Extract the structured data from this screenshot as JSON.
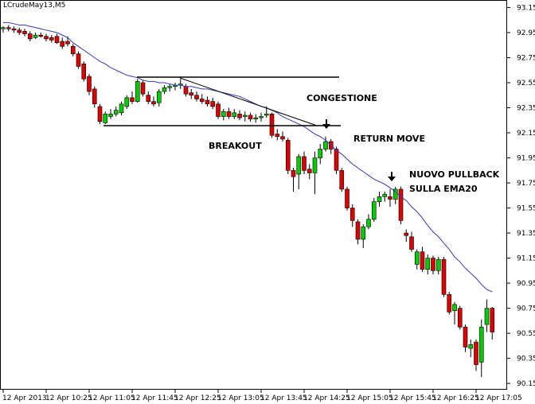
{
  "chart_data": {
    "type": "candlestick",
    "title": "LCrudeMay13,M5",
    "categories": [
      "12 Apr 2013",
      null,
      null,
      null,
      null,
      null,
      null,
      null,
      "12 Apr 10:25",
      null,
      null,
      null,
      null,
      null,
      null,
      null,
      "12 Apr 11:05",
      null,
      null,
      null,
      null,
      null,
      null,
      null,
      "12 Apr 11:45",
      null,
      null,
      null,
      null,
      null,
      null,
      null,
      "12 Apr 12:25",
      null,
      null,
      null,
      null,
      null,
      null,
      null,
      "12 Apr 13:05",
      null,
      null,
      null,
      null,
      null,
      null,
      null,
      "12 Apr 13:45",
      null,
      null,
      null,
      null,
      null,
      null,
      null,
      "12 Apr 14:25",
      null,
      null,
      null,
      null,
      null,
      null,
      null,
      "12 Apr 15:05",
      null,
      null,
      null,
      null,
      null,
      null,
      null,
      "12 Apr 15:45",
      null,
      null,
      null,
      null,
      null,
      null,
      null,
      "12 Apr 16:25",
      null,
      null,
      null,
      null,
      null,
      null,
      null,
      "12 Apr 17:05",
      null,
      null,
      null
    ],
    "open": [
      92.98,
      92.99,
      92.98,
      92.97,
      92.96,
      92.94,
      92.91,
      92.93,
      92.92,
      92.91,
      92.92,
      92.88,
      92.88,
      92.84,
      92.78,
      92.7,
      92.6,
      92.5,
      92.36,
      92.23,
      92.28,
      92.3,
      92.31,
      92.36,
      92.43,
      92.4,
      92.55,
      92.45,
      92.4,
      92.39,
      92.48,
      92.51,
      92.52,
      92.53,
      92.52,
      92.47,
      92.45,
      92.42,
      92.41,
      92.4,
      92.38,
      92.28,
      92.32,
      92.28,
      92.3,
      92.28,
      92.29,
      92.26,
      92.27,
      92.29,
      92.3,
      92.14,
      92.12,
      92.09,
      91.85,
      91.82,
      91.96,
      91.86,
      91.83,
      91.95,
      92.02,
      92.08,
      92.02,
      91.85,
      91.7,
      91.55,
      91.44,
      91.3,
      91.4,
      91.46,
      91.6,
      91.64,
      91.64,
      91.62,
      91.7,
      91.35,
      91.32,
      91.1,
      91.2,
      91.06,
      91.15,
      91.05,
      91.14,
      90.86,
      90.73,
      90.75,
      90.6,
      90.43,
      90.48,
      90.32,
      90.62,
      90.75
    ],
    "high": [
      93.0,
      93.01,
      93.0,
      92.99,
      92.98,
      92.96,
      92.95,
      92.95,
      92.94,
      92.93,
      92.94,
      92.91,
      92.92,
      92.86,
      92.8,
      92.72,
      92.62,
      92.52,
      92.38,
      92.32,
      92.34,
      92.36,
      92.4,
      92.45,
      92.48,
      92.58,
      92.57,
      92.48,
      92.44,
      92.5,
      92.53,
      92.54,
      92.55,
      92.58,
      92.54,
      92.5,
      92.48,
      92.46,
      92.44,
      92.43,
      92.4,
      92.34,
      92.35,
      92.34,
      92.33,
      92.32,
      92.31,
      92.3,
      92.31,
      92.36,
      92.31,
      92.18,
      92.16,
      92.11,
      91.87,
      91.98,
      92.0,
      91.9,
      92.0,
      92.06,
      92.12,
      92.1,
      92.04,
      91.87,
      91.72,
      91.58,
      91.46,
      91.42,
      91.5,
      91.63,
      91.68,
      91.68,
      91.7,
      91.72,
      91.72,
      91.38,
      91.36,
      91.22,
      91.24,
      91.18,
      91.17,
      91.16,
      91.16,
      90.88,
      90.8,
      90.77,
      90.62,
      90.5,
      90.5,
      90.66,
      90.82,
      90.76
    ],
    "low": [
      92.95,
      92.96,
      92.95,
      92.93,
      92.92,
      92.88,
      92.9,
      92.91,
      92.88,
      92.87,
      92.86,
      92.82,
      92.84,
      92.76,
      92.66,
      92.56,
      92.45,
      92.35,
      92.22,
      92.22,
      92.26,
      92.28,
      92.29,
      92.34,
      92.38,
      92.39,
      92.44,
      92.38,
      92.36,
      92.36,
      92.46,
      92.48,
      92.49,
      92.5,
      92.44,
      92.42,
      92.4,
      92.38,
      92.36,
      92.34,
      92.26,
      92.25,
      92.26,
      92.26,
      92.25,
      92.24,
      92.24,
      92.23,
      92.24,
      92.27,
      92.11,
      92.09,
      92.08,
      91.82,
      91.68,
      91.7,
      91.82,
      91.78,
      91.66,
      91.9,
      92.0,
      91.98,
      91.82,
      91.68,
      91.53,
      91.4,
      91.26,
      91.23,
      91.38,
      91.44,
      91.56,
      91.6,
      91.56,
      91.58,
      91.42,
      91.28,
      91.2,
      91.06,
      91.04,
      91.02,
      91.02,
      91.02,
      90.84,
      90.7,
      90.62,
      90.58,
      90.4,
      90.36,
      90.25,
      90.2,
      90.56,
      90.5
    ],
    "close": [
      92.99,
      92.98,
      92.97,
      92.95,
      92.94,
      92.9,
      92.93,
      92.92,
      92.9,
      92.89,
      92.87,
      92.84,
      92.86,
      92.78,
      92.68,
      92.58,
      92.48,
      92.38,
      92.24,
      92.3,
      92.3,
      92.33,
      92.38,
      92.43,
      92.4,
      92.56,
      92.46,
      92.4,
      92.38,
      92.48,
      92.51,
      92.52,
      92.53,
      92.54,
      92.46,
      92.45,
      92.42,
      92.4,
      92.38,
      92.36,
      92.28,
      92.32,
      92.28,
      92.31,
      92.27,
      92.29,
      92.26,
      92.27,
      92.28,
      92.3,
      92.13,
      92.12,
      92.1,
      91.85,
      91.8,
      91.96,
      91.85,
      91.83,
      91.95,
      92.02,
      92.08,
      92.02,
      91.85,
      91.7,
      91.55,
      91.45,
      91.3,
      91.4,
      91.46,
      91.6,
      91.64,
      91.66,
      91.62,
      91.7,
      91.45,
      91.33,
      91.22,
      91.2,
      91.06,
      91.15,
      91.05,
      91.14,
      90.86,
      90.72,
      90.78,
      90.6,
      90.44,
      90.46,
      90.3,
      90.6,
      90.75,
      90.56
    ],
    "ema": [
      93.03,
      93.03,
      93.02,
      93.01,
      93.01,
      93.0,
      92.99,
      92.98,
      92.97,
      92.96,
      92.95,
      92.93,
      92.91,
      92.87,
      92.84,
      92.81,
      92.78,
      92.75,
      92.72,
      92.7,
      92.67,
      92.65,
      92.63,
      92.61,
      92.6,
      92.59,
      92.57,
      92.56,
      92.56,
      92.55,
      92.55,
      92.54,
      92.53,
      92.53,
      92.52,
      92.52,
      92.51,
      92.5,
      92.5,
      92.49,
      92.48,
      92.47,
      92.46,
      92.45,
      92.44,
      92.42,
      92.4,
      92.38,
      92.36,
      92.35,
      92.33,
      92.31,
      92.28,
      92.26,
      92.24,
      92.22,
      92.2,
      92.17,
      92.14,
      92.12,
      92.09,
      92.05,
      92.01,
      91.98,
      91.94,
      91.9,
      91.87,
      91.84,
      91.81,
      91.78,
      91.76,
      91.74,
      91.71,
      91.68,
      91.64,
      91.61,
      91.56,
      91.52,
      91.47,
      91.41,
      91.36,
      91.32,
      91.27,
      91.22,
      91.16,
      91.12,
      91.07,
      91.03,
      90.99,
      90.94,
      90.9,
      90.88
    ],
    "up_color": "#00cc00",
    "down_color": "#dd0000",
    "ema_color": "#3838b0",
    "ylim": [
      90.1,
      93.21
    ],
    "yticks": [
      93.15,
      92.95,
      92.75,
      92.55,
      92.35,
      92.15,
      91.95,
      91.75,
      91.55,
      91.35,
      91.15,
      90.95,
      90.75,
      90.55,
      90.35,
      90.15
    ],
    "annotations": [
      "CONGESTIONE",
      "BREAKOUT",
      "RETURN MOVE",
      "NUOVO PULLBACK",
      "SULLA EMA20"
    ]
  }
}
